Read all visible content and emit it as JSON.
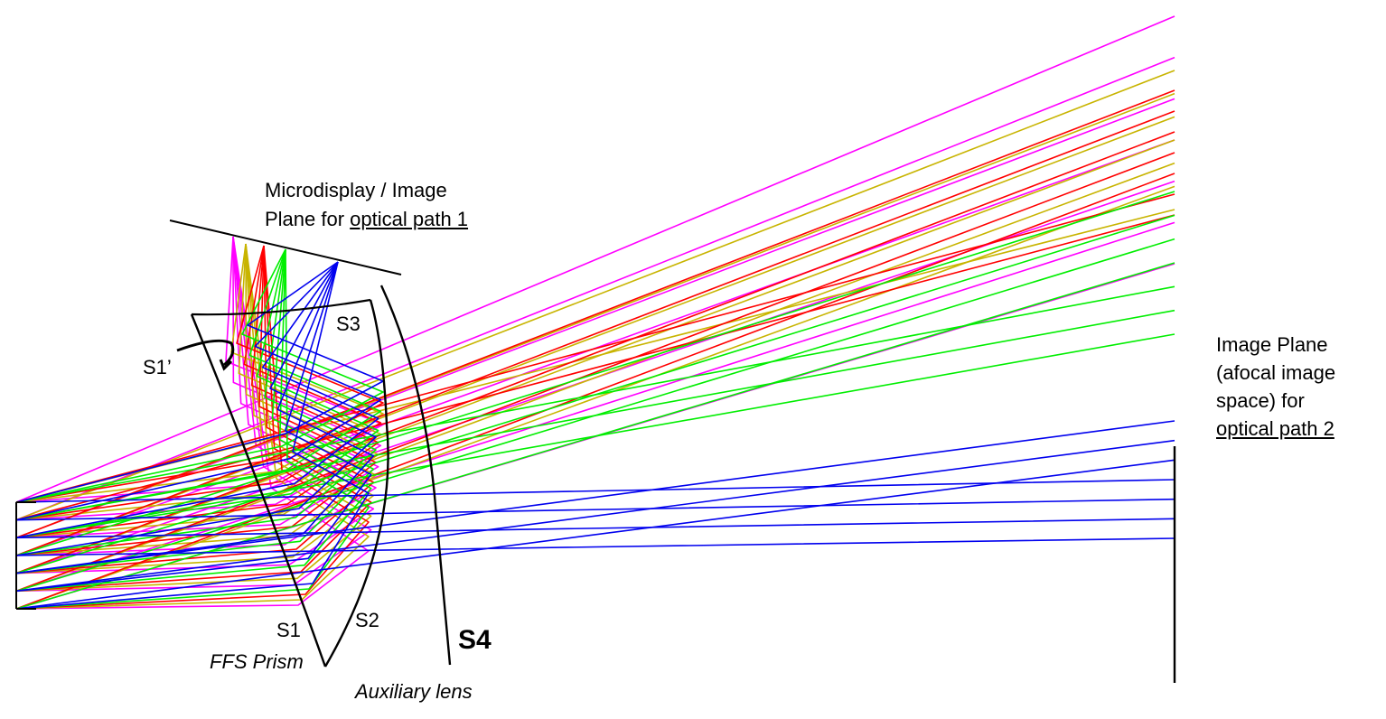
{
  "labels": {
    "microdisplay_line1": "Microdisplay / Image",
    "microdisplay_line2_prefix": "Plane for ",
    "microdisplay_line2_link": "optical path 1",
    "s3": "S3",
    "s1_prime": "S1’",
    "s1": "S1",
    "s2": "S2",
    "s4": "S4",
    "ffs_prism": "FFS Prism",
    "auxiliary_lens": "Auxiliary lens",
    "image_plane_line1": "Image Plane",
    "image_plane_line2": "(afocal image",
    "image_plane_line3": "space) for",
    "image_plane_line4": "optical path 2"
  },
  "colors": {
    "magenta": "#ff00ff",
    "olive": "#c8b400",
    "red": "#ff0000",
    "green": "#00ee00",
    "blue": "#0000ee",
    "structure": "#000000"
  }
}
